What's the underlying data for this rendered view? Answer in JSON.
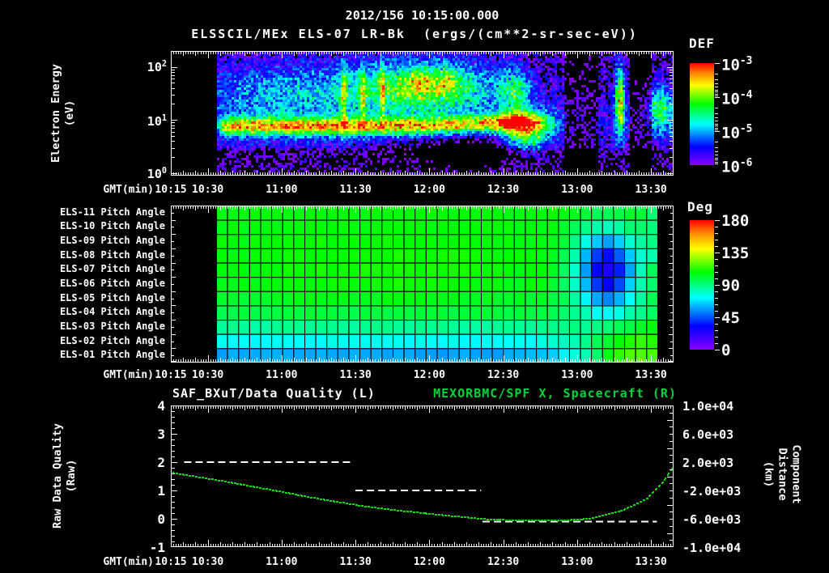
{
  "header": {
    "date_title": "2012/156 10:15:00.000",
    "spectrogram_title": "ELSSCIL/MEx ELS-07 LR-Bk  (ergs/(cm**2-sr-sec-eV))"
  },
  "time_axis": {
    "label": "GMT(min)",
    "tick_labels": [
      "10:15",
      "10:30",
      "11:00",
      "11:30",
      "12:00",
      "12:30",
      "13:00",
      "13:30"
    ],
    "range_hours": [
      10.25,
      13.647
    ]
  },
  "spectro_panel": {
    "ylabel_line1": "Electron Energy",
    "ylabel_line2": "(eV)",
    "ytick_exponents": [
      "2",
      "1",
      "0"
    ],
    "colorbar": {
      "title": "DEF",
      "tick_exponents": [
        "-3",
        "-4",
        "-5",
        "-6"
      ]
    }
  },
  "pitch_panel": {
    "row_labels": [
      "ELS-11 Pitch Angle",
      "ELS-10 Pitch Angle",
      "ELS-09 Pitch Angle",
      "ELS-08 Pitch Angle",
      "ELS-07 Pitch Angle",
      "ELS-06 Pitch Angle",
      "ELS-05 Pitch Angle",
      "ELS-04 Pitch Angle",
      "ELS-03 Pitch Angle",
      "ELS-02 Pitch Angle",
      "ELS-01 Pitch Angle"
    ],
    "colorbar": {
      "title": "Deg",
      "tick_labels": [
        "180",
        "135",
        "90",
        "45",
        "0"
      ]
    }
  },
  "ts_panel": {
    "title_left": "SAF_BXuT/Data Quality (L)",
    "title_right": "MEXORBMC/SPF X, Spacecraft (R)",
    "left_ticks": [
      "4",
      "3",
      "2",
      "1",
      "0",
      "-1"
    ],
    "right_ticks": [
      "1.0e+04",
      "6.0e+03",
      "2.0e+03",
      "-2.0e+03",
      "-6.0e+03",
      "-1.0e+04"
    ],
    "ylabel_left_line1": "Raw Data Quality",
    "ylabel_left_line2": "(Raw)",
    "ylabel_right_line1": "Component Distance",
    "ylabel_right_line2": "(km)"
  },
  "colors": {
    "text": "#ffffff",
    "green_text": "#00d23c",
    "curve_green": "#00dd00",
    "background": "#000000"
  },
  "chart_data": [
    {
      "type": "heatmap",
      "name": "electron-energy-spectrogram",
      "title": "ELSSCIL/MEx ELS-07 LR-Bk",
      "units": "ergs/(cm**2-sr-sec-eV)",
      "xlabel": "GMT(min)",
      "ylabel": "Electron Energy (eV)",
      "x_range_hours": [
        10.25,
        13.647
      ],
      "y_range_ev": [
        0.9,
        200
      ],
      "y_scale": "log",
      "color_scale": {
        "label": "DEF",
        "log10_range": [
          -6,
          -3
        ],
        "palette": "rainbow"
      },
      "data_start_hour": 10.557,
      "band": {
        "log10e": 0.88,
        "sig": 0.12,
        "amp": 2.0,
        "drift_start": 12.0,
        "drift_amount": 0.1,
        "fade_start": 12.55,
        "fade_len": 0.4
      },
      "features": [
        {
          "t": 12.0,
          "sig_t": 0.33,
          "log10e": 1.62,
          "sig_e": 0.34,
          "amp": 1.75
        },
        {
          "t": 11.94,
          "sig_t": 0.05,
          "log10e": 1.72,
          "sig_e": 0.16,
          "amp": 0.65
        },
        {
          "t": 12.12,
          "sig_t": 0.05,
          "log10e": 1.76,
          "sig_e": 0.14,
          "amp": 0.6
        },
        {
          "t": 11.1,
          "sig_t": 0.5,
          "log10e": 1.5,
          "sig_e": 0.42,
          "amp": 0.85
        },
        {
          "t": 11.42,
          "sig_t": 0.015,
          "log10e": 1.45,
          "sig_e": 0.45,
          "amp": 1.15
        },
        {
          "t": 11.55,
          "sig_t": 0.015,
          "log10e": 1.5,
          "sig_e": 0.4,
          "amp": 1.05
        },
        {
          "t": 11.68,
          "sig_t": 0.012,
          "log10e": 1.5,
          "sig_e": 0.45,
          "amp": 1.0
        },
        {
          "t": 12.58,
          "sig_t": 0.07,
          "log10e": 1.55,
          "sig_e": 0.3,
          "amp": 1.15
        },
        {
          "t": 12.65,
          "sig_t": 0.11,
          "log10e": 0.78,
          "sig_e": 0.26,
          "amp": 1.95
        },
        {
          "t": 13.29,
          "sig_t": 0.022,
          "log10e": 1.35,
          "sig_e": 0.45,
          "amp": 2.3
        },
        {
          "t": 13.56,
          "sig_t": 0.06,
          "log10e": 1.2,
          "sig_e": 0.28,
          "amp": 1.5
        },
        {
          "t": 12.25,
          "sig_t": 0.3,
          "log10e": 0.45,
          "sig_e": 0.18,
          "amp": -0.9
        }
      ],
      "dark_intervals": [
        [
          12.92,
          13.15,
          0.4
        ],
        [
          13.36,
          13.5,
          0.5
        ]
      ]
    },
    {
      "type": "heatmap",
      "name": "pitch-angle-grid",
      "units": "deg",
      "rows": [
        "ELS-11",
        "ELS-10",
        "ELS-09",
        "ELS-08",
        "ELS-07",
        "ELS-06",
        "ELS-05",
        "ELS-04",
        "ELS-03",
        "ELS-02",
        "ELS-01"
      ],
      "color_scale": {
        "label": "Deg",
        "range": [
          0,
          180
        ],
        "palette": "rainbow"
      },
      "t_range": [
        10.557,
        13.543
      ],
      "n_cols": 40,
      "row_base_deg": [
        107,
        106.5,
        106,
        105.5,
        104.5,
        103,
        100.5,
        97,
        86,
        73,
        58
      ],
      "features": [
        {
          "name": "midday-warming",
          "t": 11.75,
          "sig_t": 0.8,
          "amp": 7
        },
        {
          "name": "blue-depression",
          "t": 13.2,
          "sig_t": 0.15,
          "row_center": 4,
          "sig_row": 2.0,
          "amp": -80
        },
        {
          "name": "bottom-right-warming",
          "t": 13.42,
          "sig_t": 0.28,
          "amp": 62
        },
        {
          "name": "upper-right-cooling",
          "t_start": 13.38,
          "amp": -14
        }
      ]
    },
    {
      "type": "line",
      "name": "quality-and-spacecraft-x",
      "x_axis": {
        "label": "GMT(min)",
        "range_hours": [
          10.25,
          13.647
        ]
      },
      "left_axis": {
        "label": "Raw Data Quality (Raw)",
        "range": [
          -1,
          4
        ]
      },
      "right_axis": {
        "label": "Component Distance (km)",
        "range": [
          -10000,
          10000
        ]
      },
      "series": [
        {
          "name": "SAF_BXuT/Data Quality (L)",
          "axis": "left",
          "color": "#ffffff",
          "style": "dashed",
          "segments": [
            {
              "t0": 10.34,
              "t1": 11.48,
              "value": 2
            },
            {
              "t0": 11.5,
              "t1": 12.35,
              "value": 1
            },
            {
              "t0": 12.36,
              "t1": 13.54,
              "value": -0.1
            }
          ]
        },
        {
          "name": "MEXORBMC/SPF X, Spacecraft (R)",
          "axis": "right",
          "color": "#00dd00",
          "style": "dotted",
          "points": [
            [
              10.25,
              514
            ],
            [
              10.49,
              -286
            ],
            [
              10.74,
              -1200
            ],
            [
              11.01,
              -2229
            ],
            [
              11.27,
              -3257
            ],
            [
              11.54,
              -4171
            ],
            [
              11.8,
              -4857
            ],
            [
              12.06,
              -5429
            ],
            [
              12.38,
              -6057
            ],
            [
              12.58,
              -6229
            ],
            [
              12.87,
              -6286
            ],
            [
              13.09,
              -6000
            ],
            [
              13.31,
              -4857
            ],
            [
              13.48,
              -3029
            ],
            [
              13.59,
              -629
            ],
            [
              13.647,
              1200
            ]
          ]
        }
      ]
    }
  ]
}
